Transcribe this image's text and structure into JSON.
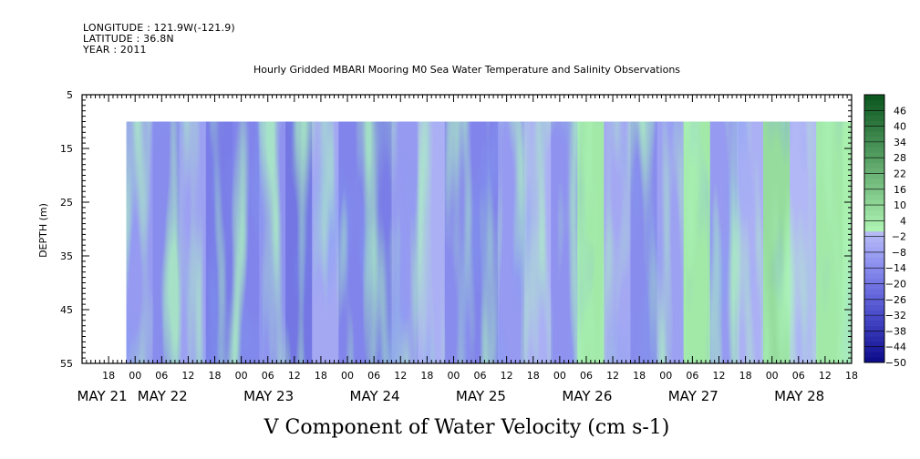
{
  "header": {
    "longitude": "LONGITUDE : 121.9W(-121.9)",
    "latitude": "LATITUDE : 36.8N",
    "year": "YEAR : 2011"
  },
  "chart_data": {
    "type": "heatmap",
    "title": "Hourly Gridded MBARI Mooring M0 Sea Water Temperature and Salinity Observations",
    "xlabel": "V Component of Water Velocity (cm s-1)",
    "ylabel": "DEPTH (m)",
    "ylim": [
      55,
      5
    ],
    "y_ticks": [
      5,
      15,
      25,
      35,
      45,
      55
    ],
    "data_depth_range": [
      10,
      55
    ],
    "x_range": [
      "2011-05-21T12:00",
      "2011-05-28T18:00"
    ],
    "data_time_range": [
      "2011-05-21T22:00",
      "2011-05-28T18:00"
    ],
    "x_hour_ticks": [
      "18",
      "00",
      "06",
      "12",
      "18",
      "00",
      "06",
      "12",
      "18",
      "00",
      "06",
      "12",
      "18",
      "00",
      "06",
      "12",
      "18",
      "00",
      "06",
      "12",
      "18",
      "00",
      "06",
      "12",
      "18",
      "00",
      "06",
      "12",
      "18",
      "00",
      "06",
      "12"
    ],
    "x_date_labels": [
      "MAY 21",
      "MAY 22",
      "MAY 23",
      "MAY 24",
      "MAY 25",
      "MAY 26",
      "MAY 27",
      "MAY 28"
    ],
    "colorbar": {
      "levels": [
        -50,
        -44,
        -38,
        -32,
        -26,
        -20,
        -14,
        -8,
        -2,
        4,
        10,
        16,
        22,
        28,
        34,
        40,
        46
      ],
      "labeled_ticks": [
        "46",
        "40",
        "34",
        "28",
        "22",
        "16",
        "10",
        "4",
        "−2",
        "−8",
        "−14",
        "−20",
        "−26",
        "−32",
        "−38",
        "−44",
        "−50"
      ],
      "range": [
        -50,
        52
      ]
    },
    "approx_time_series_depth_mean": {
      "hours_from_may21_22h": [
        0,
        6,
        12,
        18,
        24,
        30,
        36,
        42,
        48,
        54,
        60,
        66,
        72,
        78,
        84,
        90,
        96,
        102,
        108,
        114,
        120,
        126,
        132,
        138,
        144,
        150,
        156,
        162,
        168
      ],
      "v_cm_s": [
        -10,
        -14,
        -8,
        -18,
        -16,
        -12,
        -20,
        -6,
        -16,
        -18,
        -10,
        -4,
        -14,
        -16,
        -10,
        -4,
        -12,
        4,
        -6,
        -14,
        -8,
        4,
        -10,
        -4,
        8,
        -2,
        4,
        2,
        6
      ]
    }
  }
}
